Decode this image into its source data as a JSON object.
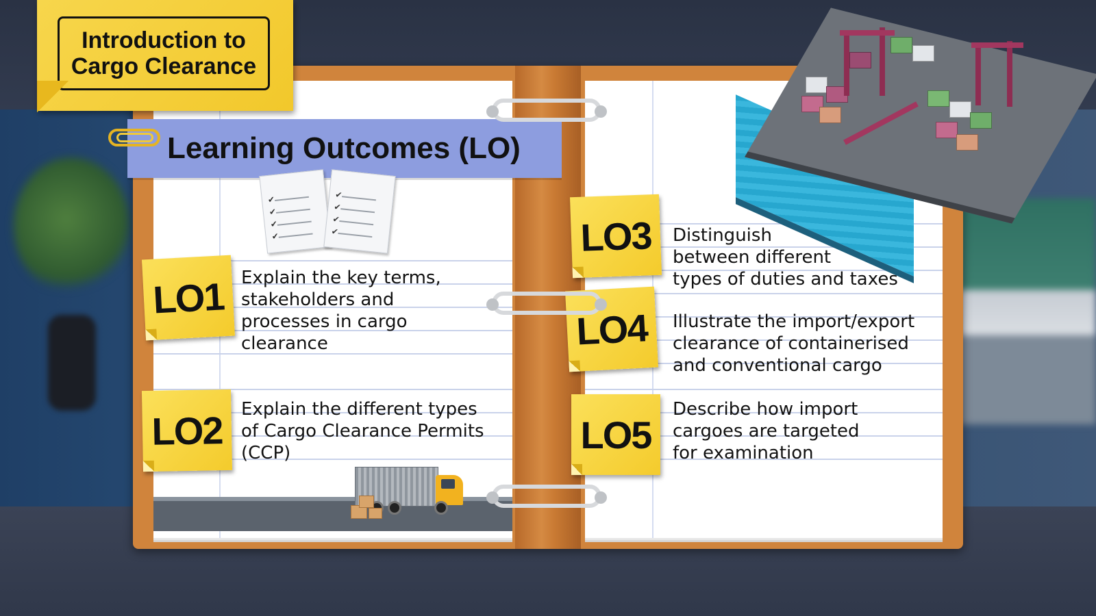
{
  "header": {
    "title": "Introduction to\nCargo Clearance"
  },
  "section": {
    "title": "Learning Outcomes (LO)"
  },
  "outcomes": [
    {
      "label": "LO1",
      "text": "Explain the key terms,\nstakeholders and\nprocesses in cargo\nclearance"
    },
    {
      "label": "LO2",
      "text": "Explain the different types\nof Cargo Clearance Permits\n(CCP)"
    },
    {
      "label": "LO3",
      "text": "Distinguish\nbetween different\ntypes of duties and taxes"
    },
    {
      "label": "LO4",
      "text": "Illustrate the import/export\nclearance of containerised\nand conventional cargo"
    },
    {
      "label": "LO5",
      "text": "Describe how import\ncargoes are targeted\nfor examination"
    }
  ],
  "icons": {
    "checklist": "checklist-icon",
    "truck": "truck-icon",
    "port": "port-icon",
    "paperclip": "paperclip-icon"
  },
  "colors": {
    "sticky": "#f4cb2c",
    "banner": "#8d9ddf",
    "binder": "#d0843c"
  }
}
